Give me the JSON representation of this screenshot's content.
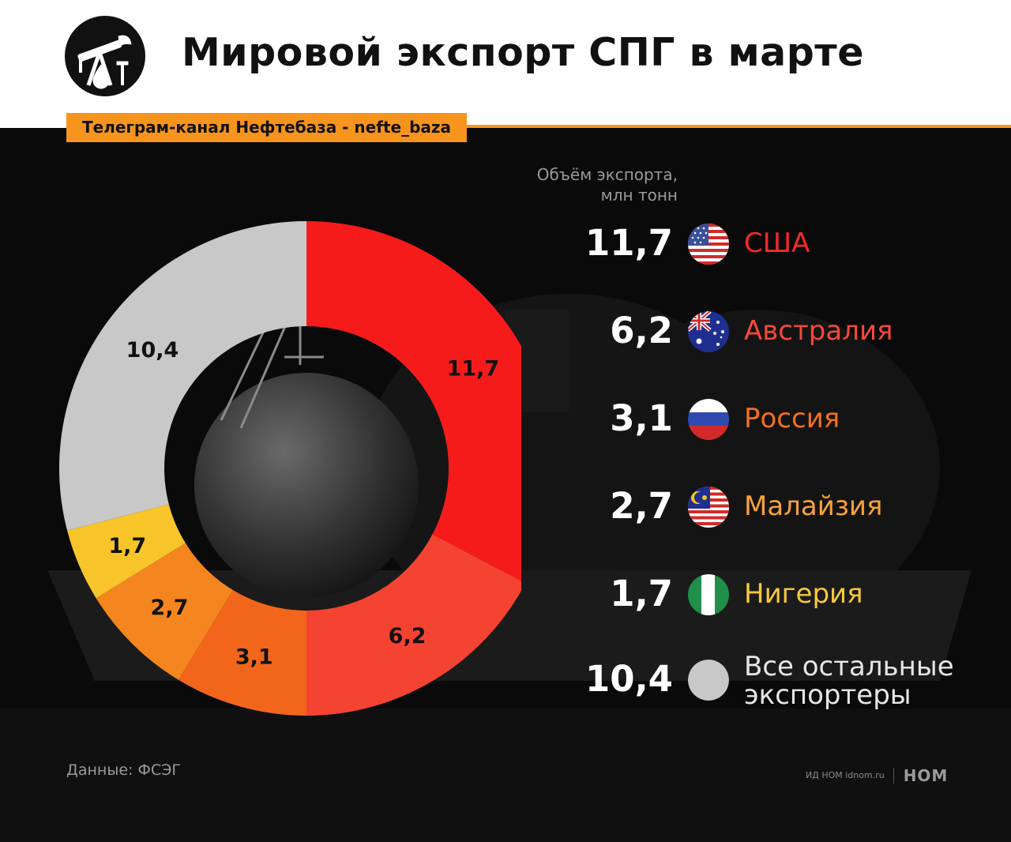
{
  "header": {
    "title": "Мировой экспорт СПГ в марте",
    "channel_label": "Телеграм-канал Нефтебаза - nefte_baza"
  },
  "legend": {
    "header_line1": "Объём экспорта,",
    "header_line2": "млн тонн"
  },
  "footer": {
    "source": "Данные: ФСЭГ",
    "brand_text": "ИД НОМ idnom.ru",
    "brand_logo": "НОМ"
  },
  "colors": {
    "accent": "#f7941d",
    "panel_bg": "#0a0a0a"
  },
  "chart_data": {
    "type": "pie",
    "unit": "млн тонн",
    "series": [
      {
        "name": "США",
        "value": 11.7,
        "label": "11,7",
        "color": "#f51b1b",
        "text_color": "#f32a2a",
        "flag": "usa-flag-icon"
      },
      {
        "name": "Австралия",
        "value": 6.2,
        "label": "6,2",
        "color": "#f54332",
        "text_color": "#f5493a",
        "flag": "australia-flag-icon"
      },
      {
        "name": "Россия",
        "value": 3.1,
        "label": "3,1",
        "color": "#f2661c",
        "text_color": "#f4701e",
        "flag": "russia-flag-icon"
      },
      {
        "name": "Малайзия",
        "value": 2.7,
        "label": "2,7",
        "color": "#f5851f",
        "text_color": "#f8a23a",
        "flag": "malaysia-flag-icon"
      },
      {
        "name": "Нигерия",
        "value": 1.7,
        "label": "1,7",
        "color": "#f7c52a",
        "text_color": "#f9c93a",
        "flag": "nigeria-flag-icon"
      },
      {
        "name": "Все остальные экспортеры",
        "value": 10.4,
        "label": "10,4",
        "color": "#c8c8c8",
        "text_color": "#e6e6e6",
        "flag": "grey-circle-icon"
      }
    ]
  }
}
